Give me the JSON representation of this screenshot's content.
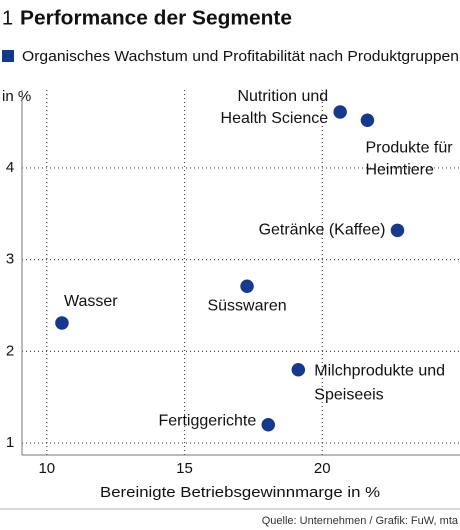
{
  "chart_data": {
    "type": "scatter",
    "figure_number": "1",
    "title": "Performance der Segmente",
    "subtitle": "Organisches Wachstum und Profitabilität nach Produktgruppen",
    "y_label": "in %",
    "x_label": "Bereinigte Betriebsgewinnmarge in %",
    "source": "Quelle: Unternehmen / Grafik: FuW, mta",
    "color": "#17398c",
    "grid": true,
    "xlim": [
      9.1,
      25
    ],
    "xticks": [
      10,
      15,
      20
    ],
    "ylim": [
      0.87,
      4.85
    ],
    "yticks": [
      1,
      2,
      3,
      4
    ],
    "labels": [
      [
        "Nutrition und",
        "Health Science"
      ],
      [
        "Produkte für",
        "Heimtiere"
      ],
      [
        "Getränke (Kaffee)"
      ],
      [
        "Süsswaren"
      ],
      [
        "Wasser"
      ],
      [
        "Milchprodukte und",
        "Speiseeis"
      ],
      [
        "Fertiggerichte"
      ]
    ],
    "x": [
      20.65,
      21.64,
      22.73,
      17.27,
      10.55,
      19.13,
      18.04
    ],
    "values": [
      4.61,
      4.52,
      3.32,
      2.71,
      2.31,
      1.8,
      1.2
    ]
  }
}
